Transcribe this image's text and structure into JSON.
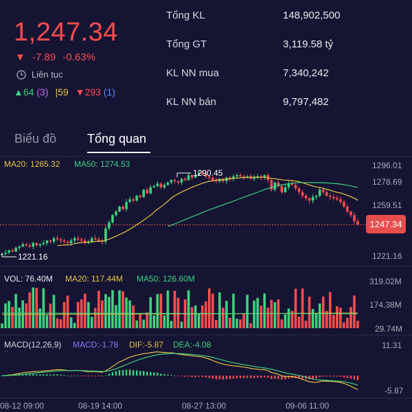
{
  "quote": {
    "price": "1,247.34",
    "change_arrow": "▼",
    "change": "-7.89",
    "change_pct": "-0.63%",
    "session_icon": "clock-icon",
    "session": "Liên tục",
    "breadth": {
      "up_count": "64",
      "ceil_count": "(3)",
      "ref_count": "59",
      "down_count": "293",
      "floor_count": "(1)"
    }
  },
  "stats": [
    {
      "label": "Tổng KL",
      "value": "148,902,500"
    },
    {
      "label": "Tổng GT",
      "value": "3,119.58 tỷ"
    },
    {
      "label": "KL NN mua",
      "value": "7,340,242"
    },
    {
      "label": "KL NN bán",
      "value": "9,797,482"
    }
  ],
  "tabs": [
    {
      "label": "Biểu đồ",
      "active": false
    },
    {
      "label": "Tổng quan",
      "active": true
    }
  ],
  "colors": {
    "background": "#151433",
    "up": "#3fd27f",
    "down": "#ff4d4f",
    "ma20": "#e8c547",
    "ma50": "#3fd27f",
    "macd_line": "#8a7cff",
    "dif": "#e8c547",
    "dea": "#3fd27f"
  },
  "price_panel": {
    "ma20_label": "MA20: 1265.32",
    "ma50_label": "MA50: 1274.53",
    "y_ticks": [
      "1296.01",
      "1278.69",
      "1259.51",
      "1221.16"
    ],
    "last_price": "1247.34",
    "high_label": "1290.45",
    "low_label": "1221.16"
  },
  "volume_panel": {
    "vol_label": "VOL: 76.40M",
    "ma20_label": "MA20: 117.44M",
    "ma50_label": "MA50: 126.60M",
    "y_ticks": [
      "319.02M",
      "174.38M",
      "29.74M"
    ]
  },
  "macd_panel": {
    "title": "MACD(12,26,9)",
    "macd_label": "MACD:-1.78",
    "dif_label": "DIF:-5.87",
    "dea_label": "DEA:-4.08",
    "y_ticks": [
      "11.31",
      "-5.87"
    ]
  },
  "x_labels": [
    "08-12 09:00",
    "08-19 14:00",
    "08-27 13:00",
    "09-06 11:00"
  ],
  "chart_data": {
    "type": "candlestick",
    "close": [
      1223,
      1224,
      1226,
      1225,
      1228,
      1229,
      1231,
      1230,
      1229,
      1232,
      1230,
      1231,
      1232,
      1234,
      1233,
      1236,
      1235,
      1234,
      1233,
      1232,
      1234,
      1236,
      1235,
      1234,
      1232,
      1233,
      1236,
      1235,
      1234,
      1233,
      1244,
      1249,
      1255,
      1258,
      1262,
      1260,
      1266,
      1268,
      1267,
      1271,
      1270,
      1276,
      1273,
      1278,
      1279,
      1281,
      1278,
      1280,
      1282,
      1284,
      1283,
      1282,
      1285,
      1284,
      1288,
      1286,
      1288,
      1290,
      1289,
      1287,
      1286,
      1284,
      1283,
      1285,
      1283,
      1286,
      1285,
      1287,
      1288,
      1287,
      1286,
      1287,
      1285,
      1286,
      1287,
      1286,
      1288,
      1284,
      1276,
      1282,
      1279,
      1274,
      1278,
      1281,
      1280,
      1277,
      1274,
      1271,
      1269,
      1267,
      1270,
      1271,
      1276,
      1274,
      1271,
      1270,
      1269,
      1268,
      1266,
      1262,
      1258,
      1255,
      1250,
      1247.34
    ],
    "volume_ma20": 117.44,
    "volume_ma50": 126.6,
    "last_volume": 76.4,
    "macd_dif_last": -5.87,
    "macd_dea_last": -4.08,
    "macd_hist_last": -1.78,
    "ylim_price": [
      1221.16,
      1296.01
    ],
    "ylim_volume": [
      29.74,
      319.02
    ]
  }
}
